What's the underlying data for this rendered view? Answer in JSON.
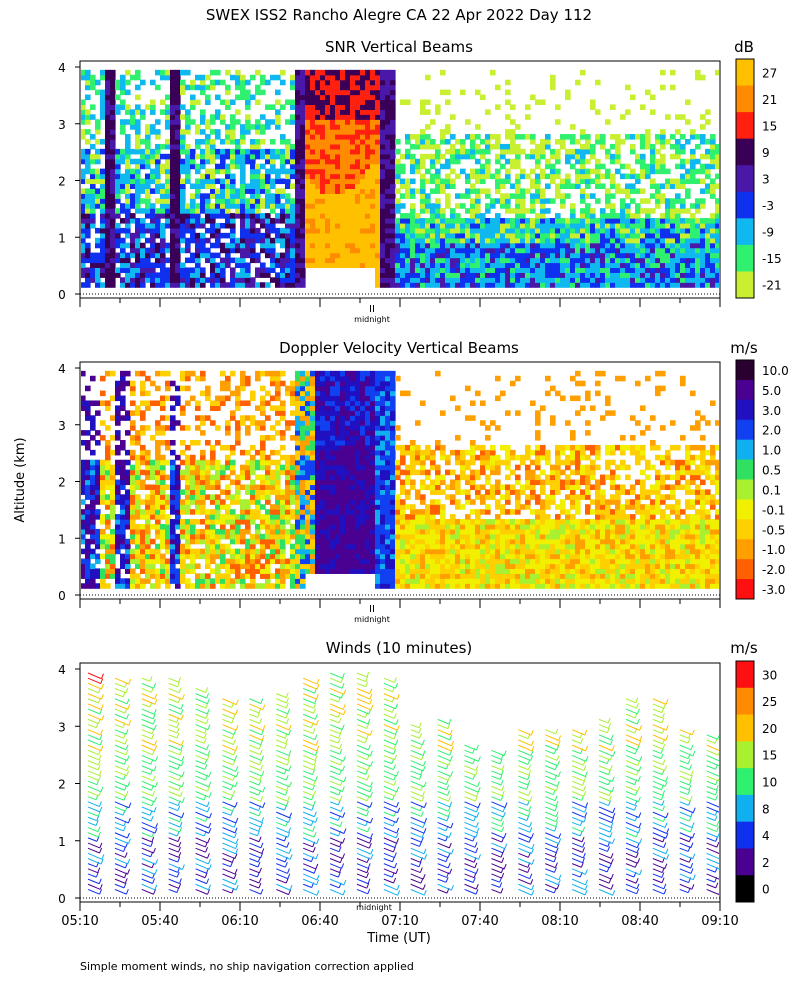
{
  "page_title": "SWEX ISS2 Rancho Alegre CA  22 Apr 2022 Day 112",
  "y_axis_label": "Altitude (km)",
  "footer_note": "Simple moment winds, no ship navigation correction applied",
  "midnight_label": "midnight",
  "midnight_marker": "II",
  "chart_data": [
    {
      "type": "heatmap",
      "title": "SNR Vertical Beams",
      "units": "dB",
      "ylim": [
        0,
        4
      ],
      "y_ticks": [
        "0",
        "1",
        "2",
        "3",
        "4"
      ],
      "colorbar": {
        "labels": [
          "27",
          "21",
          "15",
          "9",
          "3",
          "-3",
          "-9",
          "-15",
          "-21"
        ],
        "colors": [
          "#ffc000",
          "#ff8c00",
          "#ff2010",
          "#3a0058",
          "#4a18a8",
          "#1030f0",
          "#10b8f0",
          "#30f070",
          "#c8f030"
        ]
      },
      "time_axis": "05:10 - 09:10 UT (shared)"
    },
    {
      "type": "heatmap",
      "title": "Doppler Velocity Vertical Beams",
      "units": "m/s",
      "ylim": [
        0,
        4
      ],
      "y_ticks": [
        "0",
        "1",
        "2",
        "3",
        "4"
      ],
      "colorbar": {
        "labels": [
          "10.0",
          "5.0",
          "3.0",
          "2.0",
          "1.0",
          "0.5",
          "0.1",
          "-0.1",
          "-0.5",
          "-1.0",
          "-2.0",
          "-3.0"
        ],
        "colors": [
          "#2a0030",
          "#4a0090",
          "#2010c0",
          "#1040f0",
          "#10b0f0",
          "#30e060",
          "#a8f030",
          "#f0f000",
          "#ffd000",
          "#ffa000",
          "#ff6000",
          "#ff1010"
        ]
      },
      "time_axis": "05:10 - 09:10 UT (shared)"
    },
    {
      "type": "scatter",
      "title": "Winds (10 minutes)",
      "units": "m/s",
      "ylim": [
        0,
        4
      ],
      "y_ticks": [
        "0",
        "1",
        "2",
        "3",
        "4"
      ],
      "xlabel": "Time (UT)",
      "x_ticks": [
        "05:10",
        "05:40",
        "06:10",
        "06:40",
        "07:10",
        "07:40",
        "08:10",
        "08:40",
        "09:10"
      ],
      "colorbar": {
        "labels": [
          "30",
          "25",
          "20",
          "15",
          "10",
          "8",
          "4",
          "2",
          "0"
        ],
        "colors": [
          "#ff1010",
          "#ff8c00",
          "#ffc000",
          "#a8f030",
          "#30f070",
          "#10b0f0",
          "#1030f0",
          "#4a0090",
          "#000000"
        ]
      },
      "profiles": [
        {
          "time": "05:10",
          "top_km": 4.0
        },
        {
          "time": "05:20",
          "top_km": 3.9
        },
        {
          "time": "05:30",
          "top_km": 3.9
        },
        {
          "time": "05:40",
          "top_km": 3.9
        },
        {
          "time": "05:50",
          "top_km": 3.7
        },
        {
          "time": "06:00",
          "top_km": 3.5
        },
        {
          "time": "06:10",
          "top_km": 3.5
        },
        {
          "time": "06:20",
          "top_km": 3.6
        },
        {
          "time": "06:30",
          "top_km": 3.9
        },
        {
          "time": "06:40",
          "top_km": 4.0
        },
        {
          "time": "06:50",
          "top_km": 4.0
        },
        {
          "time": "07:00",
          "top_km": 3.9
        },
        {
          "time": "07:10",
          "top_km": 3.1
        },
        {
          "time": "07:20",
          "top_km": 3.2
        },
        {
          "time": "07:30",
          "top_km": 2.7
        },
        {
          "time": "07:40",
          "top_km": 2.6
        },
        {
          "time": "07:50",
          "top_km": 3.0
        },
        {
          "time": "08:00",
          "top_km": 3.0
        },
        {
          "time": "08:10",
          "top_km": 3.0
        },
        {
          "time": "08:20",
          "top_km": 3.2
        },
        {
          "time": "08:30",
          "top_km": 3.5
        },
        {
          "time": "08:40",
          "top_km": 3.5
        },
        {
          "time": "08:50",
          "top_km": 3.0
        },
        {
          "time": "09:00",
          "top_km": 2.9
        }
      ]
    }
  ]
}
